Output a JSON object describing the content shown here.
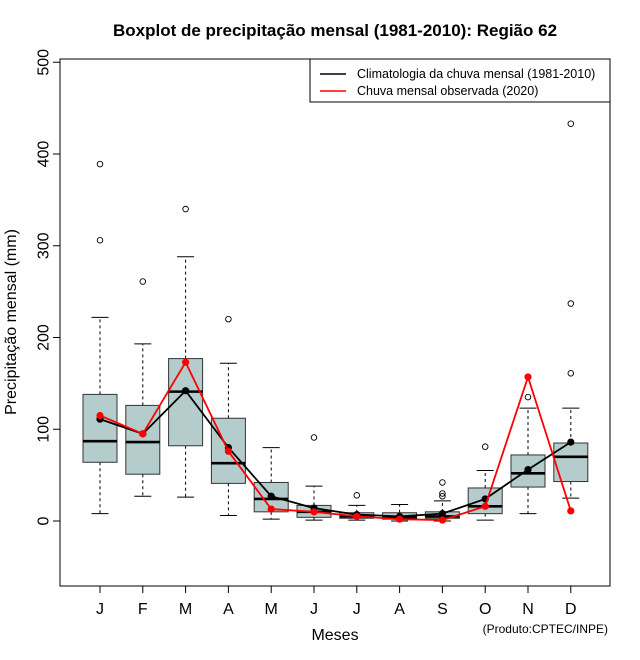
{
  "chart_data": {
    "type": "boxplot",
    "title": "Boxplot de precipitação mensal (1981-2010): Região 62",
    "xlabel": "Meses",
    "ylabel": "Precipitação mensal (mm)",
    "ylim": [
      -70,
      505
    ],
    "yticks": [
      0,
      100,
      200,
      300,
      400,
      500
    ],
    "categories": [
      "J",
      "F",
      "M",
      "A",
      "M",
      "J",
      "J",
      "A",
      "S",
      "O",
      "N",
      "D"
    ],
    "boxes": [
      {
        "whisker_low": 8,
        "q1": 64,
        "median": 87,
        "q3": 138,
        "whisker_high": 222,
        "outliers": [
          306,
          389
        ]
      },
      {
        "whisker_low": 27,
        "q1": 51,
        "median": 86,
        "q3": 126,
        "whisker_high": 193,
        "outliers": [
          261
        ]
      },
      {
        "whisker_low": 26,
        "q1": 82,
        "median": 141,
        "q3": 177,
        "whisker_high": 288,
        "outliers": [
          340
        ]
      },
      {
        "whisker_low": 6,
        "q1": 41,
        "median": 63,
        "q3": 112,
        "whisker_high": 172,
        "outliers": [
          220
        ]
      },
      {
        "whisker_low": 2,
        "q1": 10,
        "median": 24,
        "q3": 42,
        "whisker_high": 80,
        "outliers": []
      },
      {
        "whisker_low": 1,
        "q1": 4,
        "median": 10,
        "q3": 17,
        "whisker_high": 38,
        "outliers": [
          91
        ]
      },
      {
        "whisker_low": 1,
        "q1": 3,
        "median": 5,
        "q3": 9,
        "whisker_high": 17,
        "outliers": [
          28
        ]
      },
      {
        "whisker_low": 0,
        "q1": 2,
        "median": 4,
        "q3": 9,
        "whisker_high": 18,
        "outliers": []
      },
      {
        "whisker_low": 0,
        "q1": 3,
        "median": 5,
        "q3": 10,
        "whisker_high": 22,
        "outliers": [
          27,
          30,
          42
        ]
      },
      {
        "whisker_low": 1,
        "q1": 8,
        "median": 16,
        "q3": 36,
        "whisker_high": 55,
        "outliers": [
          81
        ]
      },
      {
        "whisker_low": 8,
        "q1": 37,
        "median": 52,
        "q3": 72,
        "whisker_high": 123,
        "outliers": [
          135
        ]
      },
      {
        "whisker_low": 25,
        "q1": 43,
        "median": 70,
        "q3": 85,
        "whisker_high": 123,
        "outliers": [
          161,
          237,
          433
        ]
      }
    ],
    "series": [
      {
        "name": "Climatologia da chuva mensal (1981-2010)",
        "color": "#000000",
        "values": [
          111,
          95,
          142,
          80,
          27,
          14,
          7,
          5,
          8,
          24,
          56,
          86
        ]
      },
      {
        "name": "Chuva mensal observada (2020)",
        "color": "#ff0000",
        "values": [
          115,
          95,
          173,
          76,
          13,
          10,
          5,
          2,
          1,
          16,
          157,
          11
        ]
      }
    ],
    "legend_position": "top-right",
    "box_fill": "#b5cccc",
    "credit": "(Produto:CPTEC/INPE)"
  }
}
